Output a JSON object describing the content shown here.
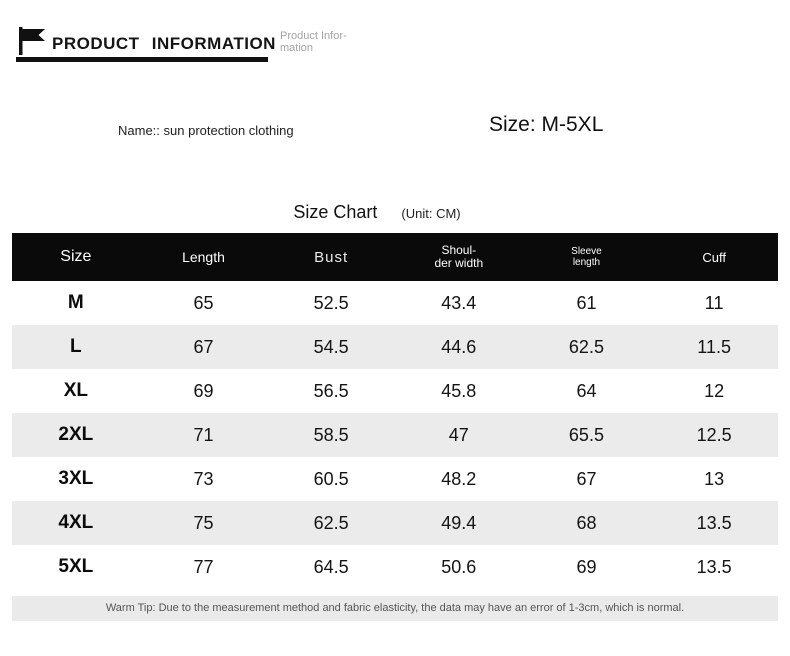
{
  "header": {
    "icon": "flag-icon",
    "title": "PRODUCT INFORMATION",
    "subtitle": "Product Infor-\nmation"
  },
  "product": {
    "name_text": "Name:: sun protection clothing",
    "size_text": "Size: M-5XL"
  },
  "size_chart": {
    "title": "Size Chart",
    "unit": "(Unit: CM)"
  },
  "chart_data": {
    "type": "table",
    "columns": [
      "Size",
      "Length",
      "Bust",
      "Shoul-\nder width",
      "Sleeve\nlength",
      "Cuff"
    ],
    "rows": [
      [
        "M",
        "65",
        "52.5",
        "43.4",
        "61",
        "11"
      ],
      [
        "L",
        "67",
        "54.5",
        "44.6",
        "62.5",
        "11.5"
      ],
      [
        "XL",
        "69",
        "56.5",
        "45.8",
        "64",
        "12"
      ],
      [
        "2XL",
        "71",
        "58.5",
        "47",
        "65.5",
        "12.5"
      ],
      [
        "3XL",
        "73",
        "60.5",
        "48.2",
        "67",
        "13"
      ],
      [
        "4XL",
        "75",
        "62.5",
        "49.4",
        "68",
        "13.5"
      ],
      [
        "5XL",
        "77",
        "64.5",
        "50.6",
        "69",
        "13.5"
      ]
    ]
  },
  "footer": {
    "warm_tip": "Warm Tip: Due to the measurement method and fabric elasticity, the data may have an error of 1-3cm, which is normal."
  },
  "colors": {
    "table_header_bg": "#0a0a0a",
    "table_header_text": "#ffffff",
    "row_alt_bg": "#ebebeb",
    "subtitle_gray": "#a3a3a3",
    "tip_bg": "#eaeaea",
    "accent_black": "#111111"
  }
}
